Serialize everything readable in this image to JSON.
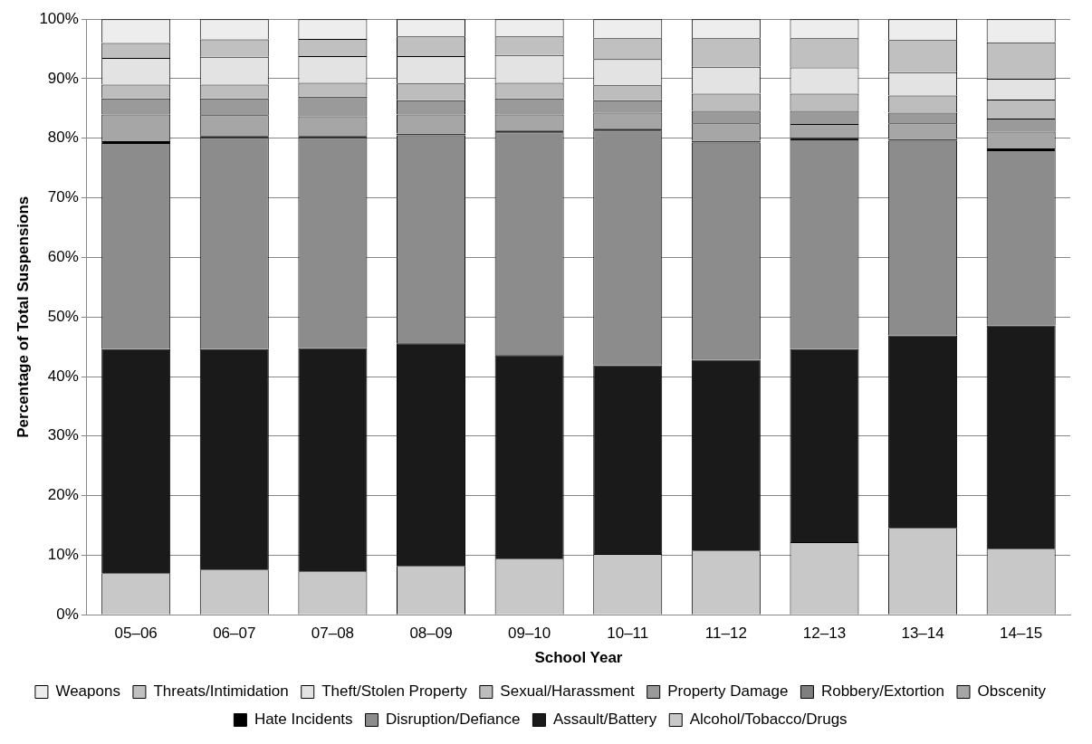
{
  "chart_data": {
    "type": "bar",
    "stacked": true,
    "xlabel": "School Year",
    "ylabel": "Percentage of Total Suspensions",
    "categories": [
      "05–06",
      "06–07",
      "07–08",
      "08–09",
      "09–10",
      "10–11",
      "11–12",
      "12–13",
      "13–14",
      "14–15"
    ],
    "ylim": [
      0,
      100
    ],
    "yticks": [
      {
        "value": 0,
        "label": "0%"
      },
      {
        "value": 10,
        "label": "10%"
      },
      {
        "value": 20,
        "label": "20%"
      },
      {
        "value": 30,
        "label": "30%"
      },
      {
        "value": 40,
        "label": "40%"
      },
      {
        "value": 50,
        "label": "50%"
      },
      {
        "value": 60,
        "label": "60%"
      },
      {
        "value": 70,
        "label": "70%"
      },
      {
        "value": 80,
        "label": "80%"
      },
      {
        "value": 90,
        "label": "90%"
      },
      {
        "value": 100,
        "label": "100%"
      }
    ],
    "grid": "y",
    "legend": "bottom",
    "series": [
      {
        "name": "Alcohol/Tobacco/Drugs",
        "color": "#c8c8c8",
        "values": [
          7.0,
          7.6,
          7.3,
          8.2,
          9.4,
          10.2,
          10.8,
          12.2,
          14.6,
          11.1
        ]
      },
      {
        "name": "Assault/Battery",
        "color": "#1a1a1a",
        "values": [
          37.6,
          37.0,
          37.5,
          37.4,
          34.2,
          31.7,
          32.0,
          32.4,
          32.3,
          37.5
        ]
      },
      {
        "name": "Disruption/Defiance",
        "color": "#8c8c8c",
        "values": [
          34.6,
          35.5,
          35.3,
          34.9,
          37.4,
          39.4,
          36.5,
          35.2,
          32.7,
          29.4
        ]
      },
      {
        "name": "Hate Incidents",
        "color": "#000000",
        "values": [
          0.3,
          0.3,
          0.3,
          0.3,
          0.3,
          0.3,
          0.3,
          0.3,
          0.3,
          0.3
        ]
      },
      {
        "name": "Obscenity",
        "color": "#a6a6a6",
        "values": [
          4.5,
          3.5,
          3.3,
          3.2,
          2.7,
          2.7,
          2.9,
          2.3,
          2.6,
          2.8
        ]
      },
      {
        "name": "Robbery/Extortion",
        "color": "#7f7f7f",
        "values": [
          null,
          null,
          null,
          null,
          null,
          null,
          null,
          null,
          null,
          null
        ]
      },
      {
        "name": "Property Damage",
        "color": "#9a9a9a",
        "values": [
          2.7,
          2.8,
          3.3,
          2.4,
          2.7,
          2.1,
          2.1,
          2.2,
          1.8,
          2.2
        ]
      },
      {
        "name": "Sexual/Harassment",
        "color": "#bdbdbd",
        "values": [
          2.3,
          2.3,
          2.3,
          2.8,
          2.6,
          2.5,
          2.9,
          2.9,
          2.9,
          3.2
        ]
      },
      {
        "name": "Theft/Stolen Property",
        "color": "#e3e3e3",
        "values": [
          4.5,
          4.7,
          4.5,
          4.6,
          4.7,
          4.4,
          4.5,
          4.4,
          3.9,
          3.5
        ]
      },
      {
        "name": "Threats/Intimidation",
        "color": "#c0c0c0",
        "values": [
          2.5,
          2.9,
          2.9,
          3.3,
          3.1,
          3.5,
          4.8,
          4.9,
          5.4,
          6.1
        ]
      },
      {
        "name": "Weapons",
        "color": "#ededed",
        "values": [
          4.0,
          3.4,
          3.3,
          2.9,
          2.9,
          3.2,
          3.2,
          3.2,
          3.5,
          3.9
        ]
      }
    ]
  }
}
